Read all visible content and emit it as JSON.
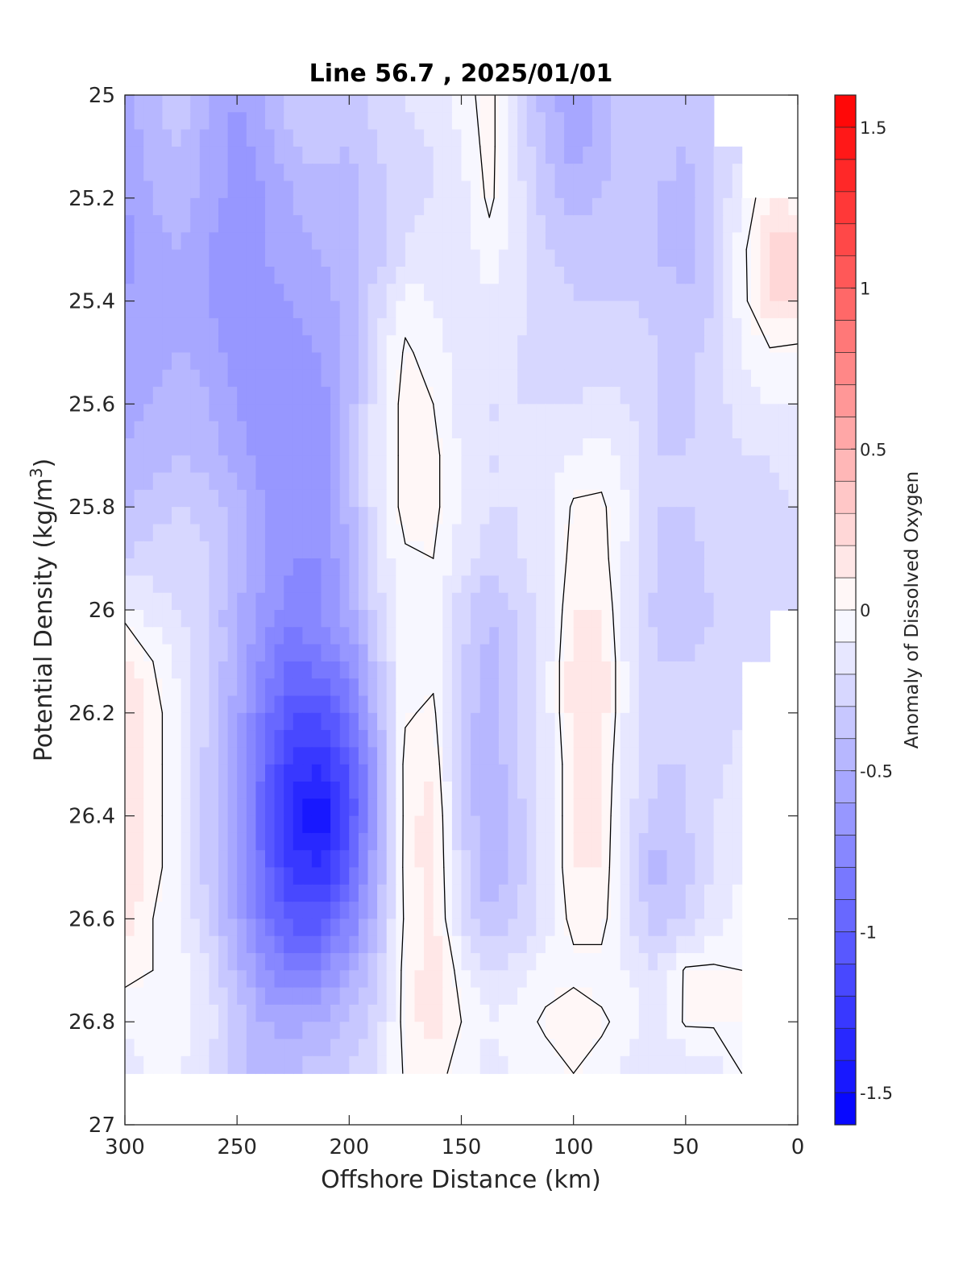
{
  "chart_data": {
    "type": "heatmap",
    "title": "Line 56.7 , 2025/01/01",
    "xlabel": "Offshore Distance (km)",
    "ylabel": "Potential Density (kg/m³)",
    "ylabel_base": "Potential Density (kg/m",
    "ylabel_sup": "3",
    "ylabel_close": ")",
    "colorbar_label": "Anomaly of Dissolved Oxygen",
    "xlim": [
      300,
      0
    ],
    "ylim": [
      25,
      27
    ],
    "xticks": [
      "300",
      "250",
      "200",
      "150",
      "100",
      "50",
      "0"
    ],
    "yticks": [
      "25",
      "25.2",
      "25.4",
      "25.6",
      "25.8",
      "26",
      "26.2",
      "26.4",
      "26.6",
      "26.8",
      "27"
    ],
    "colorbar_range": [
      -1.6,
      1.6
    ],
    "colorbar_ticks": [
      "-1.5",
      "-1",
      "-0.5",
      "0",
      "0.5",
      "1",
      "1.5"
    ],
    "colorbar_levels": 32,
    "colormap": {
      "low": "#0000ff",
      "mid": "#ffffff",
      "high": "#ff0000"
    },
    "contour_level": 0,
    "x_grid": [
      300,
      287.5,
      275,
      262.5,
      250,
      237.5,
      225,
      212.5,
      200,
      187.5,
      175,
      162.5,
      150,
      137.5,
      125,
      112.5,
      100,
      87.5,
      75,
      62.5,
      50,
      37.5,
      25,
      12.5,
      0
    ],
    "y_grid": [
      25.0,
      25.1,
      25.2,
      25.3,
      25.4,
      25.5,
      25.6,
      25.7,
      25.8,
      25.9,
      26.0,
      26.1,
      26.2,
      26.3,
      26.4,
      26.5,
      26.6,
      26.7,
      26.8,
      26.9
    ],
    "anomaly": [
      [
        -0.55,
        -0.4,
        -0.35,
        -0.5,
        -0.6,
        -0.5,
        -0.35,
        -0.3,
        -0.35,
        -0.25,
        -0.2,
        -0.15,
        -0.05,
        0.05,
        -0.2,
        -0.45,
        -0.6,
        -0.45,
        -0.3,
        -0.35,
        -0.35,
        -0.3,
        null,
        null,
        null
      ],
      [
        -0.6,
        -0.45,
        -0.4,
        -0.55,
        -0.65,
        -0.55,
        -0.4,
        -0.35,
        -0.4,
        -0.3,
        -0.25,
        -0.2,
        -0.1,
        0.05,
        -0.2,
        -0.4,
        -0.55,
        -0.45,
        -0.3,
        -0.35,
        -0.4,
        -0.3,
        -0.2,
        null,
        null
      ],
      [
        -0.6,
        -0.5,
        -0.45,
        -0.55,
        -0.65,
        -0.6,
        -0.5,
        -0.45,
        -0.45,
        -0.35,
        -0.25,
        -0.2,
        -0.15,
        0.03,
        -0.15,
        -0.35,
        -0.45,
        -0.4,
        -0.3,
        -0.4,
        -0.45,
        -0.3,
        -0.1,
        0.1,
        0.05
      ],
      [
        -0.65,
        -0.55,
        -0.5,
        -0.6,
        -0.65,
        -0.6,
        -0.55,
        -0.5,
        -0.45,
        -0.35,
        -0.2,
        -0.15,
        -0.15,
        -0.05,
        -0.15,
        -0.3,
        -0.35,
        -0.35,
        -0.3,
        -0.4,
        -0.45,
        -0.3,
        -0.05,
        0.25,
        0.3
      ],
      [
        -0.6,
        -0.55,
        -0.55,
        -0.6,
        -0.65,
        -0.65,
        -0.6,
        -0.55,
        -0.45,
        -0.25,
        -0.05,
        -0.1,
        -0.15,
        -0.1,
        -0.15,
        -0.25,
        -0.3,
        -0.3,
        -0.3,
        -0.35,
        -0.4,
        -0.3,
        -0.05,
        0.2,
        0.25
      ],
      [
        -0.6,
        -0.55,
        -0.5,
        -0.55,
        -0.65,
        -0.65,
        -0.65,
        -0.6,
        -0.45,
        -0.2,
        0.02,
        -0.05,
        -0.15,
        -0.15,
        -0.2,
        -0.25,
        -0.25,
        -0.25,
        -0.25,
        -0.3,
        -0.35,
        -0.25,
        -0.1,
        -0.02,
        -0.05
      ],
      [
        -0.55,
        -0.5,
        -0.45,
        -0.5,
        -0.6,
        -0.65,
        -0.7,
        -0.65,
        -0.45,
        -0.15,
        0.05,
        0.0,
        -0.15,
        -0.2,
        -0.2,
        -0.2,
        -0.2,
        -0.15,
        -0.2,
        -0.3,
        -0.35,
        -0.25,
        -0.15,
        -0.1,
        -0.1
      ],
      [
        -0.5,
        -0.45,
        -0.4,
        -0.45,
        -0.55,
        -0.65,
        -0.7,
        -0.65,
        -0.45,
        -0.15,
        0.05,
        0.03,
        -0.1,
        -0.2,
        -0.2,
        -0.15,
        -0.1,
        -0.05,
        -0.15,
        -0.3,
        -0.3,
        -0.25,
        -0.2,
        -0.2,
        -0.15
      ],
      [
        -0.4,
        -0.35,
        -0.3,
        -0.35,
        -0.45,
        -0.6,
        -0.7,
        -0.65,
        -0.45,
        -0.15,
        0.05,
        0.03,
        -0.1,
        -0.2,
        -0.2,
        -0.15,
        0.02,
        0.02,
        -0.1,
        -0.3,
        -0.3,
        -0.25,
        -0.25,
        -0.25,
        -0.2
      ],
      [
        -0.3,
        -0.25,
        -0.25,
        -0.3,
        -0.45,
        -0.6,
        -0.7,
        -0.7,
        -0.5,
        -0.2,
        -0.02,
        0.0,
        -0.15,
        -0.25,
        -0.2,
        -0.15,
        0.05,
        0.05,
        -0.15,
        -0.3,
        -0.4,
        -0.25,
        -0.25,
        -0.25,
        -0.2
      ],
      [
        -0.05,
        -0.15,
        -0.2,
        -0.3,
        -0.5,
        -0.65,
        -0.75,
        -0.7,
        -0.55,
        -0.25,
        -0.05,
        -0.05,
        -0.25,
        -0.4,
        -0.3,
        -0.15,
        0.1,
        0.1,
        -0.15,
        -0.35,
        -0.4,
        -0.3,
        -0.25,
        -0.25,
        -0.2
      ],
      [
        0.15,
        0.0,
        -0.15,
        -0.3,
        -0.5,
        -0.75,
        -0.9,
        -0.85,
        -0.7,
        -0.35,
        -0.05,
        -0.05,
        -0.3,
        -0.45,
        -0.3,
        -0.15,
        0.15,
        0.15,
        -0.15,
        -0.3,
        -0.3,
        -0.25,
        -0.2,
        -0.2,
        null
      ],
      [
        0.2,
        0.05,
        -0.1,
        -0.3,
        -0.55,
        -0.85,
        -1.1,
        -1.1,
        -0.85,
        -0.45,
        -0.02,
        0.03,
        -0.35,
        -0.45,
        -0.3,
        -0.15,
        0.15,
        0.15,
        -0.15,
        -0.3,
        -0.3,
        -0.25,
        -0.2,
        null,
        null
      ],
      [
        0.2,
        0.05,
        -0.1,
        -0.35,
        -0.6,
        -0.95,
        -1.25,
        -1.3,
        -1.05,
        -0.55,
        0.05,
        0.1,
        -0.35,
        -0.5,
        -0.3,
        -0.15,
        0.1,
        0.1,
        -0.15,
        -0.3,
        -0.3,
        -0.25,
        -0.15,
        null,
        null
      ],
      [
        0.2,
        0.05,
        -0.1,
        -0.35,
        -0.6,
        -1.0,
        -1.35,
        -1.5,
        -1.1,
        -0.6,
        0.05,
        0.15,
        -0.3,
        -0.5,
        -0.35,
        -0.15,
        0.1,
        0.1,
        -0.2,
        -0.35,
        -0.3,
        -0.2,
        -0.1,
        null,
        null
      ],
      [
        0.2,
        0.05,
        -0.1,
        -0.35,
        -0.6,
        -0.95,
        -1.25,
        -1.3,
        -1.0,
        -0.5,
        0.05,
        0.15,
        -0.25,
        -0.5,
        -0.35,
        -0.15,
        0.1,
        0.1,
        -0.25,
        -0.45,
        -0.35,
        -0.2,
        -0.1,
        null,
        null
      ],
      [
        0.15,
        0.0,
        -0.1,
        -0.3,
        -0.55,
        -0.85,
        -1.05,
        -1.05,
        -0.8,
        -0.45,
        0.03,
        0.15,
        -0.2,
        -0.4,
        -0.3,
        -0.15,
        0.05,
        0.05,
        -0.2,
        -0.35,
        -0.3,
        -0.15,
        -0.05,
        null,
        null
      ],
      [
        0.05,
        0.0,
        -0.05,
        -0.2,
        -0.45,
        -0.7,
        -0.8,
        -0.75,
        -0.55,
        -0.3,
        0.05,
        0.15,
        -0.05,
        -0.2,
        -0.15,
        -0.05,
        -0.05,
        -0.05,
        -0.1,
        -0.2,
        0.02,
        0.02,
        0.0,
        null,
        null
      ],
      [
        -0.1,
        -0.05,
        -0.05,
        -0.15,
        -0.35,
        -0.5,
        -0.55,
        -0.5,
        -0.4,
        -0.25,
        0.05,
        0.15,
        0.0,
        -0.1,
        -0.05,
        0.02,
        0.1,
        0.02,
        -0.05,
        -0.15,
        0.02,
        0.02,
        0.0,
        null,
        null
      ],
      [
        -0.15,
        -0.1,
        -0.1,
        -0.2,
        -0.35,
        -0.45,
        -0.4,
        -0.35,
        -0.3,
        -0.2,
        0.02,
        0.05,
        -0.05,
        -0.15,
        -0.1,
        -0.05,
        0.0,
        -0.05,
        -0.15,
        -0.2,
        -0.2,
        -0.15,
        0.0,
        null,
        null
      ]
    ]
  }
}
